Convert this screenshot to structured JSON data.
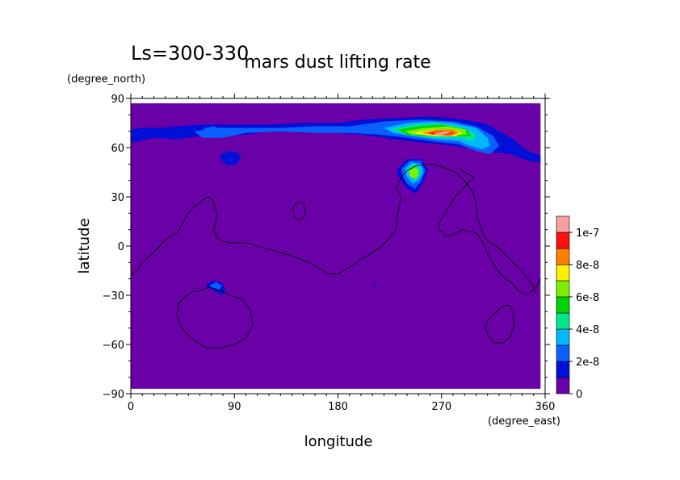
{
  "chart_data": {
    "type": "heatmap",
    "title": "mars dust lifting rate",
    "subtitle": "Ls=300-330",
    "xlabel": "longitude",
    "ylabel": "latitude",
    "x_unit": "(degree_east)",
    "y_unit": "(degree_north)",
    "xlim": [
      0,
      360
    ],
    "ylim": [
      -90,
      90
    ],
    "data_extent": {
      "lon": [
        0,
        356
      ],
      "lat": [
        -87,
        87
      ]
    },
    "x_ticks": [
      0,
      90,
      180,
      270,
      360
    ],
    "y_ticks": [
      90,
      60,
      30,
      0,
      -30,
      -60,
      -90
    ],
    "x_tick_labels": [
      "0",
      "90",
      "180",
      "270",
      "360"
    ],
    "y_tick_labels": [
      "90",
      "60",
      "30",
      "0",
      "−30",
      "−60",
      "−90"
    ],
    "colorbar": {
      "levels": [
        0,
        1e-08,
        2e-08,
        3e-08,
        4e-08,
        5e-08,
        6e-08,
        7e-08,
        8e-08,
        9e-08,
        1e-07,
        1.1e-07
      ],
      "colors": [
        "#6a00a8",
        "#0010d8",
        "#0a60ff",
        "#00b8ff",
        "#00e88c",
        "#00d400",
        "#7cf000",
        "#fff000",
        "#ff8000",
        "#ff1010",
        "#f8a0a0"
      ],
      "labels": [
        {
          "value": 0,
          "text": "0"
        },
        {
          "value": 2e-08,
          "text": "2e-8"
        },
        {
          "value": 4e-08,
          "text": "4e-8"
        },
        {
          "value": 6e-08,
          "text": "6e-8"
        },
        {
          "value": 8e-08,
          "text": "8e-8"
        },
        {
          "value": 1e-07,
          "text": "1e-7"
        }
      ]
    },
    "background_value": 0,
    "regions": [
      {
        "name": "north-band",
        "value": 1e-08,
        "lon": [
          0,
          10,
          25,
          40,
          60,
          80,
          100,
          120,
          150,
          180,
          200,
          230,
          260,
          290,
          310,
          330,
          345,
          356,
          356,
          345,
          330,
          310,
          290,
          270,
          240,
          220,
          200,
          180,
          150,
          120,
          100,
          80,
          60,
          40,
          20,
          0
        ],
        "lat": [
          71,
          72,
          72,
          73,
          74,
          74,
          74,
          74,
          75,
          75,
          77,
          78,
          79,
          77,
          74,
          66,
          58,
          55,
          51,
          52,
          56,
          58,
          60,
          62,
          64,
          66,
          68,
          69,
          70,
          70,
          68,
          67,
          67,
          65,
          66,
          63
        ]
      },
      {
        "name": "north-band-mid",
        "value": 2e-08,
        "lon": [
          55,
          75,
          100,
          130,
          160,
          190,
          220,
          250,
          280,
          300,
          315,
          320,
          312,
          300,
          285,
          260,
          240,
          215,
          190,
          160,
          130,
          100,
          80,
          62
        ],
        "lat": [
          70,
          72,
          72,
          72,
          73,
          73,
          76,
          77,
          76,
          73,
          67,
          61,
          56,
          58,
          62,
          64,
          66,
          68,
          69,
          69,
          70,
          69,
          66,
          66
        ]
      },
      {
        "name": "north-band-inner",
        "value": 3e-08,
        "lon": [
          220,
          240,
          260,
          280,
          300,
          310,
          312,
          305,
          295,
          285,
          265,
          245,
          228
        ],
        "lat": [
          72,
          75,
          76,
          75,
          72,
          66,
          61,
          59,
          61,
          64,
          65,
          67,
          69
        ]
      },
      {
        "name": "north-band-core",
        "value": 4e-08,
        "lon": [
          225,
          245,
          265,
          285,
          300,
          298,
          285,
          265,
          240
        ],
        "lat": [
          71,
          74,
          75,
          73,
          68,
          64,
          66,
          66,
          68
        ]
      },
      {
        "name": "north-band-inner2",
        "value": 5e-08,
        "lon": [
          232,
          250,
          270,
          292,
          296,
          280,
          260,
          240
        ],
        "lat": [
          71,
          73,
          74,
          71,
          67,
          67,
          67,
          68
        ]
      },
      {
        "name": "north-band-peak1",
        "value": 6e-08,
        "lon": [
          238,
          255,
          275,
          291,
          292,
          276,
          256,
          244
        ],
        "lat": [
          70,
          72,
          73,
          71,
          68,
          67,
          68,
          68
        ]
      },
      {
        "name": "north-band-peak2",
        "value": 7e-08,
        "lon": [
          245,
          262,
          280,
          288,
          282,
          264,
          252
        ],
        "lat": [
          69,
          71,
          71,
          69,
          67,
          67,
          68
        ]
      },
      {
        "name": "north-band-peak3",
        "value": 8e-08,
        "lon": [
          252,
          265,
          280,
          285,
          278,
          262
        ],
        "lat": [
          69,
          71,
          71,
          69,
          67,
          68
        ]
      },
      {
        "name": "north-band-peak4",
        "value": 9e-08,
        "lon": [
          258,
          270,
          282,
          276,
          262
        ],
        "lat": [
          69,
          70,
          69,
          68,
          68
        ]
      },
      {
        "name": "north-band-max",
        "value": 1e-07,
        "lon": [
          264,
          274,
          278,
          270,
          264
        ],
        "lat": [
          69,
          70,
          69,
          68,
          68
        ]
      },
      {
        "name": "west-band-edge",
        "value": 2e-08,
        "lon": [
          60,
          65,
          72,
          80,
          74,
          64
        ],
        "lat": [
          69,
          72,
          73,
          71,
          66,
          66
        ]
      },
      {
        "name": "small-blob-90-55",
        "value": 1e-08,
        "lon": [
          78,
          86,
          92,
          96,
          92,
          84,
          78
        ],
        "lat": [
          56,
          58,
          57,
          54,
          50,
          49,
          53
        ]
      },
      {
        "name": "blob-250-45-outer",
        "value": 1e-08,
        "lon": [
          232,
          240,
          252,
          258,
          254,
          248,
          240,
          234,
          231
        ],
        "lat": [
          47,
          53,
          53,
          47,
          39,
          32,
          35,
          41,
          44
        ]
      },
      {
        "name": "blob-250-45-mid",
        "value": 2e-08,
        "lon": [
          235,
          242,
          252,
          256,
          252,
          247,
          240,
          236
        ],
        "lat": [
          47,
          52,
          52,
          46,
          39,
          35,
          38,
          43
        ]
      },
      {
        "name": "blob-250-45-inner",
        "value": 3e-08,
        "lon": [
          238,
          244,
          252,
          254,
          250,
          245,
          240
        ],
        "lat": [
          47,
          51,
          50,
          45,
          40,
          38,
          42
        ]
      },
      {
        "name": "blob-250-45-core",
        "value": 4e-08,
        "lon": [
          240,
          246,
          251,
          251,
          247,
          242
        ],
        "lat": [
          47,
          50,
          48,
          43,
          40,
          43
        ]
      },
      {
        "name": "blob-250-45-peak",
        "value": 6e-08,
        "lon": [
          242,
          247,
          250,
          249,
          245,
          242
        ],
        "lat": [
          46,
          48,
          46,
          42,
          41,
          43
        ]
      },
      {
        "name": "blob-75-25-outer",
        "value": 1e-08,
        "lon": [
          66,
          72,
          80,
          82,
          79,
          72,
          66
        ],
        "lat": [
          -23,
          -21,
          -23,
          -27,
          -30,
          -27,
          -25
        ]
      },
      {
        "name": "blob-75-25-inner",
        "value": 2e-08,
        "lon": [
          69,
          74,
          79,
          77,
          72,
          69
        ],
        "lat": [
          -24,
          -22,
          -24,
          -27,
          -26,
          -25
        ]
      },
      {
        "name": "dot-212",
        "value": 1e-08,
        "lon": [
          211,
          213,
          213,
          211
        ],
        "lat": [
          -24,
          -24,
          -25,
          -25
        ]
      }
    ],
    "contour_lines": [
      {
        "name": "topography-equatorial",
        "lon": [
          0,
          5,
          10,
          18,
          25,
          32,
          40,
          45,
          50,
          55,
          62,
          68,
          72,
          75,
          72,
          75,
          80,
          86,
          92,
          100,
          110,
          120,
          130,
          140,
          155,
          165,
          172,
          180,
          190,
          200,
          210,
          218,
          225,
          230,
          232,
          235,
          231,
          232,
          236,
          240,
          248,
          260,
          268,
          275,
          282,
          290,
          298,
          300,
          302,
          304,
          306,
          310,
          318,
          325,
          332,
          340,
          350,
          353
        ],
        "lat": [
          -18,
          -15,
          -10,
          -5,
          0,
          5,
          8,
          14,
          20,
          24,
          28,
          30,
          27,
          18,
          10,
          5,
          3,
          2,
          2,
          2,
          0,
          -2,
          -4,
          -6,
          -10,
          -14,
          -17,
          -17,
          -13,
          -8,
          -4,
          0,
          5,
          10,
          20,
          30,
          35,
          38,
          43,
          46,
          49,
          50,
          49,
          47,
          45,
          40,
          32,
          25,
          15,
          12,
          8,
          3,
          0,
          -5,
          -10,
          -15,
          -25,
          -30
        ]
      },
      {
        "name": "topography-northeast",
        "lon": [
          285,
          298,
          290,
          283,
          278,
          273,
          268,
          268,
          274,
          280,
          288,
          300,
          306,
          310,
          316,
          322,
          330,
          338,
          345,
          353,
          356
        ],
        "lat": [
          47,
          42,
          36,
          31,
          26,
          20,
          14,
          10,
          6,
          7,
          10,
          8,
          2,
          -5,
          -12,
          -18,
          -22,
          -28,
          -30,
          -24,
          -20
        ]
      },
      {
        "name": "hellas",
        "closed": true,
        "lon": [
          62,
          68,
          78,
          86,
          96,
          104,
          106,
          100,
          90,
          78,
          66,
          56,
          44,
          40,
          42,
          48,
          54
        ],
        "lat": [
          -27,
          -25,
          -27,
          -30,
          -32,
          -39,
          -48,
          -56,
          -60,
          -62,
          -62,
          -58,
          -50,
          -42,
          -35,
          -30,
          -28
        ]
      },
      {
        "name": "argyre",
        "closed": true,
        "lon": [
          315,
          322,
          328,
          332,
          333,
          330,
          324,
          316,
          311,
          308,
          310
        ],
        "lat": [
          -42,
          -37,
          -36,
          -40,
          -48,
          -55,
          -59,
          -59,
          -55,
          -50,
          -45
        ]
      },
      {
        "name": "elysium",
        "closed": true,
        "lon": [
          142,
          146,
          150,
          152,
          150,
          145,
          142,
          141
        ],
        "lat": [
          25,
          27,
          26,
          21,
          17,
          16,
          18,
          22
        ]
      }
    ]
  }
}
